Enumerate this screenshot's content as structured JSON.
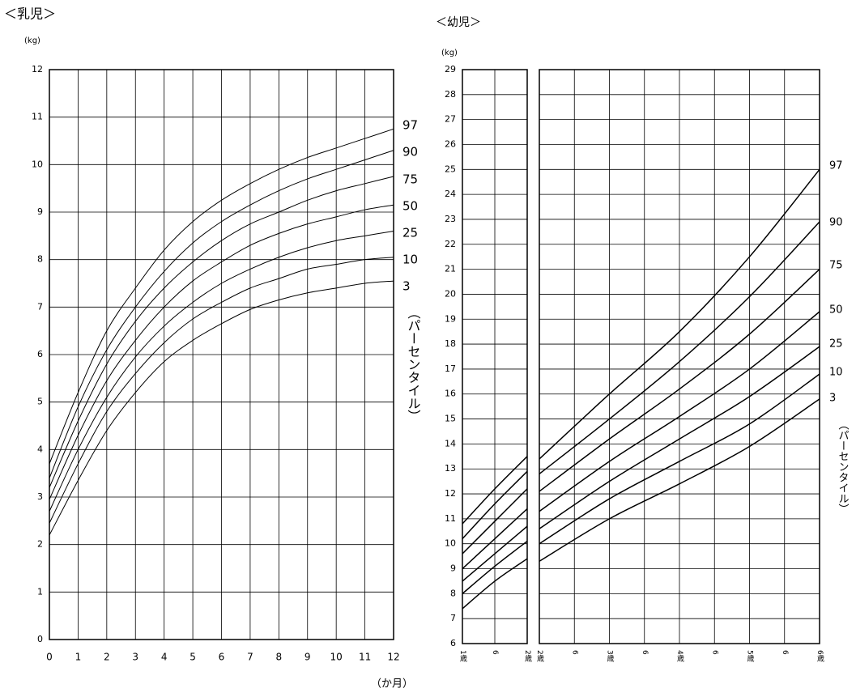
{
  "chart_data": [
    {
      "type": "line",
      "title": "＜乳児＞",
      "y_label": "(kg)",
      "x_label": "（か月）",
      "series_label": "（パーセンタイル）",
      "x": [
        0,
        1,
        2,
        3,
        4,
        5,
        6,
        7,
        8,
        9,
        10,
        11,
        12
      ],
      "xlim": [
        0,
        12
      ],
      "xticks": [
        0,
        1,
        2,
        3,
        4,
        5,
        6,
        7,
        8,
        9,
        10,
        11,
        12
      ],
      "ylim": [
        0,
        12
      ],
      "yticks": [
        0,
        1,
        2,
        3,
        4,
        5,
        6,
        7,
        8,
        9,
        10,
        11,
        12
      ],
      "grid": true,
      "series": [
        {
          "name": "97",
          "color": "#000000",
          "values": [
            3.7,
            5.2,
            6.5,
            7.4,
            8.2,
            8.8,
            9.25,
            9.6,
            9.9,
            10.15,
            10.35,
            10.55,
            10.75
          ]
        },
        {
          "name": "90",
          "color": "#000000",
          "values": [
            3.4,
            4.9,
            6.1,
            7.0,
            7.75,
            8.35,
            8.8,
            9.15,
            9.45,
            9.7,
            9.9,
            10.1,
            10.3
          ]
        },
        {
          "name": "75",
          "color": "#000000",
          "values": [
            3.2,
            4.6,
            5.8,
            6.7,
            7.4,
            7.95,
            8.4,
            8.75,
            9.0,
            9.25,
            9.45,
            9.6,
            9.75
          ]
        },
        {
          "name": "50",
          "color": "#000000",
          "values": [
            2.95,
            4.3,
            5.45,
            6.3,
            7.0,
            7.55,
            7.95,
            8.3,
            8.55,
            8.75,
            8.9,
            9.05,
            9.15
          ]
        },
        {
          "name": "25",
          "color": "#000000",
          "values": [
            2.7,
            4.0,
            5.1,
            5.95,
            6.6,
            7.1,
            7.5,
            7.8,
            8.05,
            8.25,
            8.4,
            8.5,
            8.6
          ]
        },
        {
          "name": "10",
          "color": "#000000",
          "values": [
            2.45,
            3.7,
            4.8,
            5.6,
            6.25,
            6.75,
            7.1,
            7.4,
            7.6,
            7.8,
            7.9,
            8.0,
            8.05
          ]
        },
        {
          "name": "3",
          "color": "#000000",
          "values": [
            2.2,
            3.35,
            4.4,
            5.2,
            5.85,
            6.3,
            6.65,
            6.95,
            7.15,
            7.3,
            7.4,
            7.5,
            7.55
          ]
        }
      ]
    },
    {
      "type": "line",
      "title": "＜幼児＞",
      "y_label": "(kg)",
      "x": [
        1,
        1.5,
        2
      ],
      "xlim": [
        1,
        2
      ],
      "xticks": [
        {
          "value": 1,
          "label": "1歳"
        },
        {
          "value": 1.5,
          "label": "6"
        },
        {
          "value": 2,
          "label": "2歳"
        }
      ],
      "ylim": [
        6,
        29
      ],
      "yticks": [
        6,
        7,
        8,
        9,
        10,
        11,
        12,
        13,
        14,
        15,
        16,
        17,
        18,
        19,
        20,
        21,
        22,
        23,
        24,
        25,
        26,
        27,
        28,
        29
      ],
      "grid": true,
      "series": [
        {
          "color": "#000000",
          "values": [
            10.8,
            12.2,
            13.5
          ]
        },
        {
          "color": "#000000",
          "values": [
            10.2,
            11.6,
            12.9
          ]
        },
        {
          "color": "#000000",
          "values": [
            9.6,
            10.9,
            12.2
          ]
        },
        {
          "color": "#000000",
          "values": [
            9.0,
            10.2,
            11.4
          ]
        },
        {
          "color": "#000000",
          "values": [
            8.5,
            9.6,
            10.7
          ]
        },
        {
          "color": "#000000",
          "values": [
            8.0,
            9.1,
            10.1
          ]
        },
        {
          "color": "#000000",
          "values": [
            7.4,
            8.5,
            9.4
          ]
        }
      ]
    },
    {
      "type": "line",
      "series_label": "（パーセンタイル）",
      "x": [
        2,
        3,
        4,
        5,
        6
      ],
      "xlim": [
        2,
        6
      ],
      "xticks": [
        {
          "value": 2,
          "label": "2歳"
        },
        {
          "value": 2.5,
          "label": "6"
        },
        {
          "value": 3,
          "label": "3歳"
        },
        {
          "value": 3.5,
          "label": "6"
        },
        {
          "value": 4,
          "label": "4歳"
        },
        {
          "value": 4.5,
          "label": "6"
        },
        {
          "value": 5,
          "label": "5歳"
        },
        {
          "value": 5.5,
          "label": "6"
        },
        {
          "value": 6,
          "label": "6歳"
        }
      ],
      "ylim": [
        6,
        29
      ],
      "grid": true,
      "series": [
        {
          "name": "97",
          "color": "#000000",
          "values": [
            13.4,
            16.0,
            18.5,
            21.5,
            25.0
          ]
        },
        {
          "name": "90",
          "color": "#000000",
          "values": [
            12.8,
            15.0,
            17.3,
            19.9,
            22.9
          ]
        },
        {
          "name": "75",
          "color": "#000000",
          "values": [
            12.1,
            14.2,
            16.2,
            18.4,
            21.0
          ]
        },
        {
          "name": "50",
          "color": "#000000",
          "values": [
            11.3,
            13.3,
            15.1,
            17.0,
            19.3
          ]
        },
        {
          "name": "25",
          "color": "#000000",
          "values": [
            10.6,
            12.5,
            14.2,
            15.9,
            17.9
          ]
        },
        {
          "name": "10",
          "color": "#000000",
          "values": [
            10.0,
            11.8,
            13.3,
            14.8,
            16.8
          ]
        },
        {
          "name": "3",
          "color": "#000000",
          "values": [
            9.3,
            11.0,
            12.4,
            13.9,
            15.8
          ]
        }
      ]
    }
  ]
}
